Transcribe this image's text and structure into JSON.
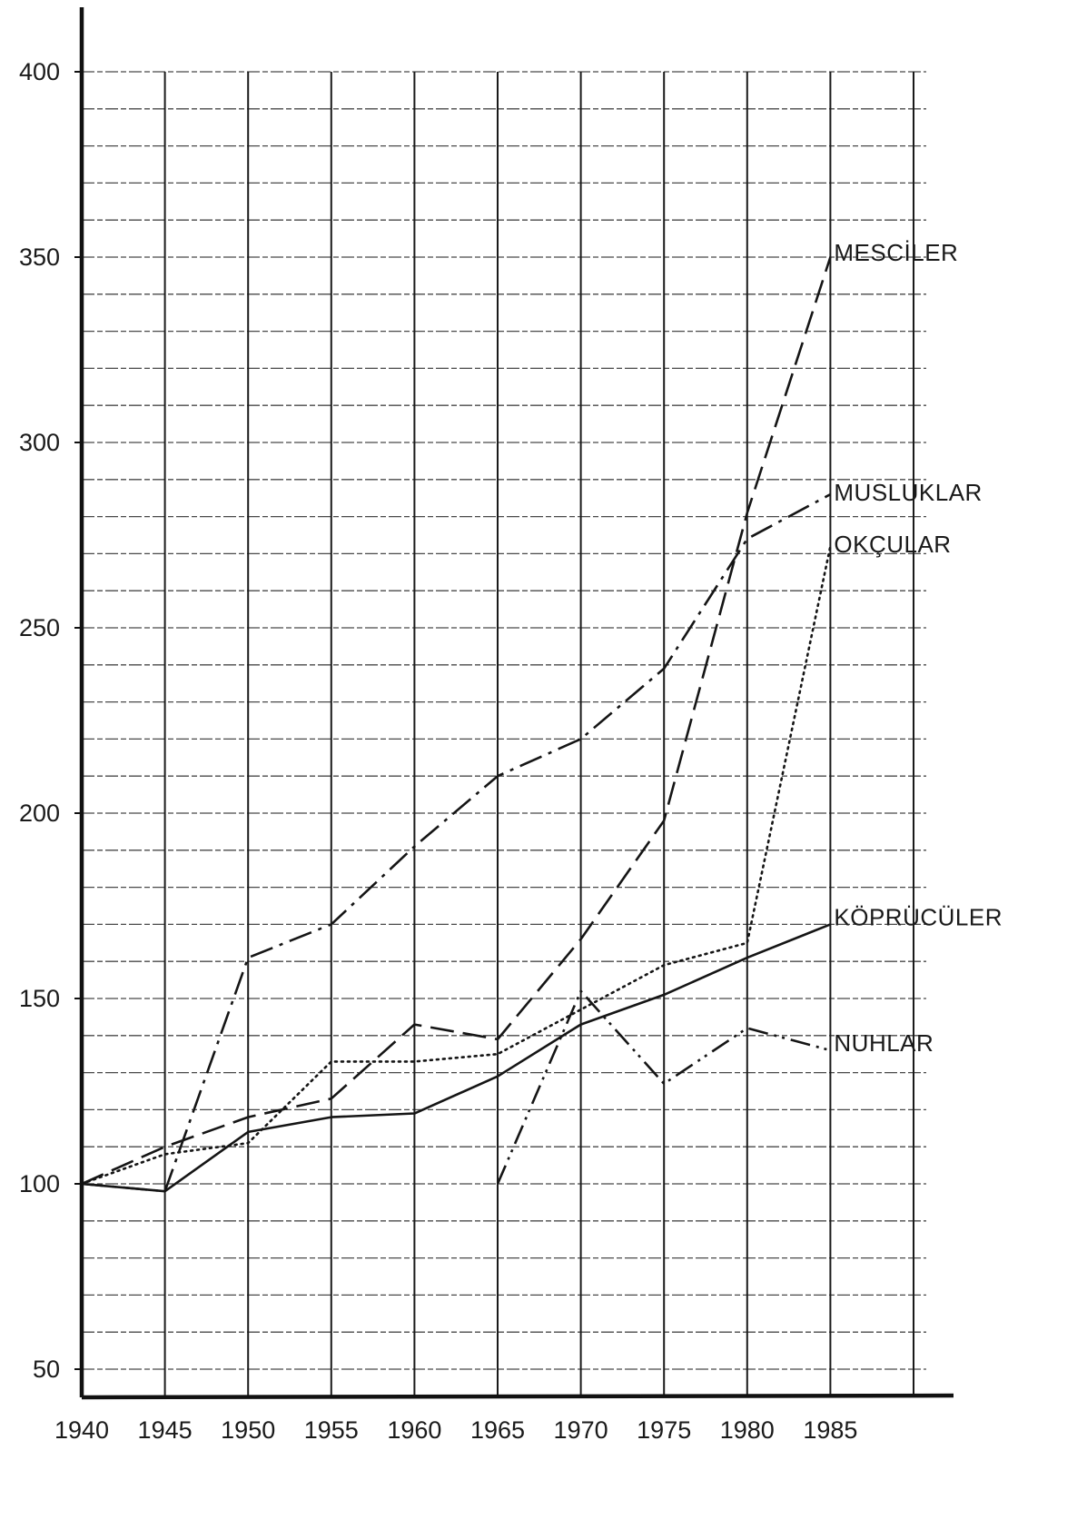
{
  "chart_data": {
    "type": "line",
    "title": "",
    "xlabel": "",
    "ylabel": "",
    "x_ticks": [
      "1940",
      "1945",
      "1950",
      "1955",
      "1960",
      "1965",
      "1970",
      "1975",
      "1980",
      "1985"
    ],
    "y_ticks": [
      "50",
      "100",
      "150",
      "200",
      "250",
      "300",
      "350",
      "400"
    ],
    "xlim": [
      1940,
      1990
    ],
    "ylim": [
      42,
      410
    ],
    "y_minor_step": 10,
    "grid": true,
    "series": [
      {
        "name": "MESCİLER",
        "style": "long-dash",
        "x": [
          1940,
          1945,
          1950,
          1955,
          1960,
          1965,
          1970,
          1975,
          1980,
          1985
        ],
        "y": [
          100,
          110,
          118,
          123,
          143,
          139,
          166,
          198,
          281,
          350
        ]
      },
      {
        "name": "MUSLUKLAR",
        "style": "dash-dot",
        "x": [
          1940,
          1945,
          1950,
          1955,
          1960,
          1965,
          1970,
          1975,
          1980,
          1985
        ],
        "y": [
          100,
          98,
          161,
          170,
          191,
          210,
          220,
          239,
          274,
          286
        ]
      },
      {
        "name": "OKÇULAR",
        "style": "dotted",
        "x": [
          1940,
          1945,
          1950,
          1955,
          1960,
          1965,
          1970,
          1975,
          1980,
          1985
        ],
        "y": [
          100,
          108,
          111,
          133,
          133,
          135,
          147,
          159,
          165,
          272
        ]
      },
      {
        "name": "KÖPRÜCÜLER",
        "style": "solid",
        "x": [
          1940,
          1945,
          1950,
          1955,
          1960,
          1965,
          1970,
          1975,
          1980,
          1985
        ],
        "y": [
          100,
          98,
          114,
          118,
          119,
          129,
          143,
          151,
          161,
          170
        ]
      },
      {
        "name": "NUHLAR",
        "style": "dash-dot-dot",
        "x": [
          1965,
          1970,
          1975,
          1980,
          1985
        ],
        "y": [
          100,
          152,
          127,
          142,
          136
        ]
      }
    ]
  }
}
